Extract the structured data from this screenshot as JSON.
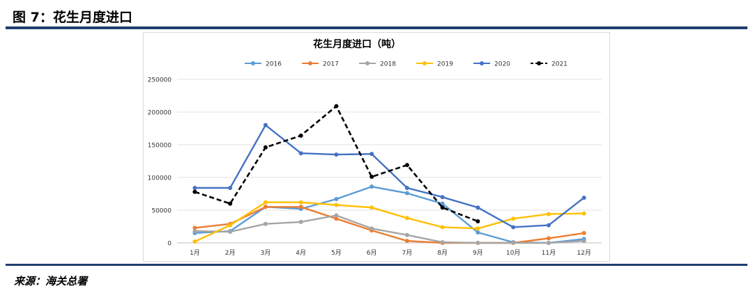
{
  "figure": {
    "label": "图 7：花生月度进口",
    "source": "来源：海关总署"
  },
  "chart_data": {
    "type": "line",
    "title": "花生月度进口（吨）",
    "xlabel": "",
    "ylabel": "",
    "categories": [
      "1月",
      "2月",
      "3月",
      "4月",
      "5月",
      "6月",
      "7月",
      "8月",
      "9月",
      "10月",
      "11月",
      "12月"
    ],
    "ylim": [
      0,
      250000
    ],
    "yticks": [
      0,
      50000,
      100000,
      150000,
      200000,
      250000
    ],
    "ytick_labels": [
      "0",
      "50000",
      "100000",
      "150000",
      "200000",
      "250000"
    ],
    "grid": true,
    "legend_position": "top",
    "series": [
      {
        "name": "2016",
        "color": "#5b9bd5",
        "dashed": false,
        "values": [
          15000,
          18000,
          55000,
          52000,
          67000,
          86000,
          76000,
          60000,
          16000,
          1000,
          0,
          6000
        ]
      },
      {
        "name": "2017",
        "color": "#ed7d31",
        "dashed": false,
        "values": [
          23000,
          29000,
          55000,
          55000,
          37000,
          19000,
          3000,
          0,
          0,
          0,
          7000,
          15000
        ]
      },
      {
        "name": "2018",
        "color": "#a5a5a5",
        "dashed": false,
        "values": [
          18000,
          17000,
          29000,
          32000,
          42000,
          22000,
          12000,
          1000,
          0,
          0,
          0,
          3000
        ]
      },
      {
        "name": "2019",
        "color": "#ffc000",
        "dashed": false,
        "values": [
          2000,
          27000,
          62000,
          62000,
          58000,
          54000,
          38000,
          24000,
          22000,
          37000,
          44000,
          45000
        ]
      },
      {
        "name": "2020",
        "color": "#4472c4",
        "dashed": false,
        "values": [
          84000,
          84000,
          180000,
          137000,
          135000,
          136000,
          84000,
          70000,
          54000,
          24000,
          27000,
          69000
        ]
      },
      {
        "name": "2021",
        "color": "#000000",
        "dashed": true,
        "values": [
          78000,
          60000,
          146000,
          164000,
          209000,
          101000,
          119000,
          54000,
          33000,
          null,
          null,
          null
        ]
      }
    ]
  }
}
